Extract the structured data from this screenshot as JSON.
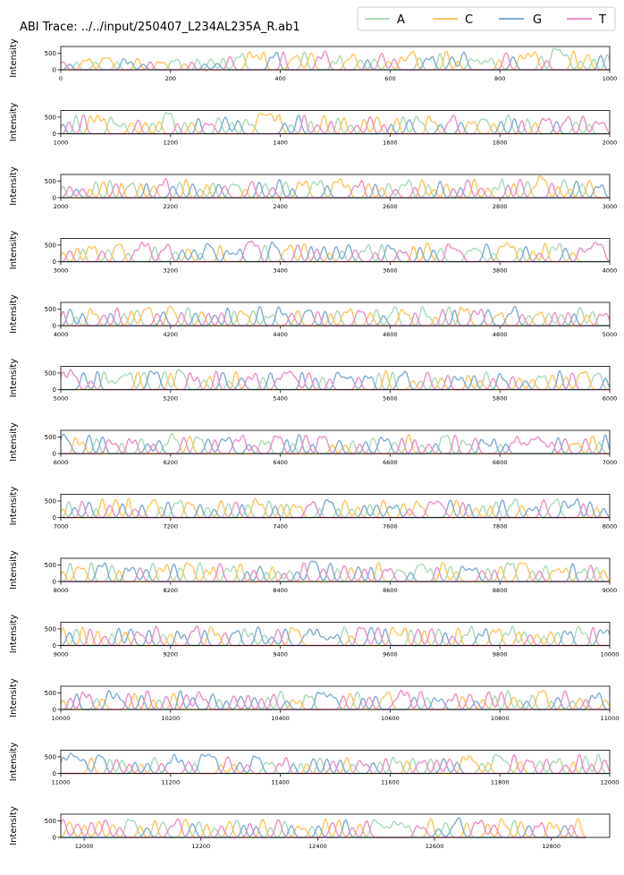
{
  "title": "ABI Trace: ../../input/250407_L234AL235A_R.ab1",
  "legend": {
    "placement": "top-right",
    "entries": [
      {
        "name": "A",
        "color": "#a8dab5"
      },
      {
        "name": "C",
        "color": "#fdc55a"
      },
      {
        "name": "G",
        "color": "#7eadd0"
      },
      {
        "name": "T",
        "color": "#e88fc7"
      }
    ]
  },
  "ylabel": "Intensity",
  "chart_data": {
    "type": "line",
    "title": "ABI Trace: ../../input/250407_L234AL235A_R.ab1",
    "ylabel": "Intensity",
    "series_names": [
      "A",
      "C",
      "G",
      "T"
    ],
    "peak_height_typical": 550,
    "grid": false,
    "panels": [
      {
        "xlim": [
          0,
          1000
        ],
        "ylim": [
          0,
          700
        ],
        "xticks": [
          0,
          200,
          400,
          600,
          800,
          1000
        ],
        "yticks": [
          0,
          500
        ]
      },
      {
        "xlim": [
          1000,
          2000
        ],
        "ylim": [
          0,
          700
        ],
        "xticks": [
          1000,
          1200,
          1400,
          1600,
          1800,
          2000
        ],
        "yticks": [
          0,
          500
        ]
      },
      {
        "xlim": [
          2000,
          3000
        ],
        "ylim": [
          0,
          700
        ],
        "xticks": [
          2000,
          2200,
          2400,
          2600,
          2800,
          3000
        ],
        "yticks": [
          0,
          500
        ]
      },
      {
        "xlim": [
          3000,
          4000
        ],
        "ylim": [
          0,
          700
        ],
        "xticks": [
          3000,
          3200,
          3400,
          3600,
          3800,
          4000
        ],
        "yticks": [
          0,
          500
        ]
      },
      {
        "xlim": [
          4000,
          5000
        ],
        "ylim": [
          0,
          700
        ],
        "xticks": [
          4000,
          4200,
          4400,
          4600,
          4800,
          5000
        ],
        "yticks": [
          0,
          500
        ]
      },
      {
        "xlim": [
          5000,
          6000
        ],
        "ylim": [
          0,
          700
        ],
        "xticks": [
          5000,
          5200,
          5400,
          5600,
          5800,
          6000
        ],
        "yticks": [
          0,
          500
        ]
      },
      {
        "xlim": [
          6000,
          7000
        ],
        "ylim": [
          0,
          700
        ],
        "xticks": [
          6000,
          6200,
          6400,
          6600,
          6800,
          7000
        ],
        "yticks": [
          0,
          500
        ]
      },
      {
        "xlim": [
          7000,
          8000
        ],
        "ylim": [
          0,
          700
        ],
        "xticks": [
          7000,
          7200,
          7400,
          7600,
          7800,
          8000
        ],
        "yticks": [
          0,
          500
        ]
      },
      {
        "xlim": [
          8000,
          9000
        ],
        "ylim": [
          0,
          700
        ],
        "xticks": [
          8000,
          8200,
          8400,
          8600,
          8800,
          9000
        ],
        "yticks": [
          0,
          500
        ]
      },
      {
        "xlim": [
          9000,
          10000
        ],
        "ylim": [
          0,
          700
        ],
        "xticks": [
          9000,
          9200,
          9400,
          9600,
          9800,
          10000
        ],
        "yticks": [
          0,
          500
        ]
      },
      {
        "xlim": [
          10000,
          11000
        ],
        "ylim": [
          0,
          700
        ],
        "xticks": [
          10000,
          10200,
          10400,
          10600,
          10800,
          11000
        ],
        "yticks": [
          0,
          500
        ]
      },
      {
        "xlim": [
          11000,
          12000
        ],
        "ylim": [
          0,
          700
        ],
        "xticks": [
          11000,
          11200,
          11400,
          11600,
          11800,
          12000
        ],
        "yticks": [
          0,
          500
        ]
      },
      {
        "xlim": [
          11960,
          12900
        ],
        "ylim": [
          0,
          700
        ],
        "xticks": [
          12000,
          12200,
          12400,
          12600,
          12800
        ],
        "yticks": [
          0,
          500
        ],
        "data_end": 12860
      }
    ]
  }
}
